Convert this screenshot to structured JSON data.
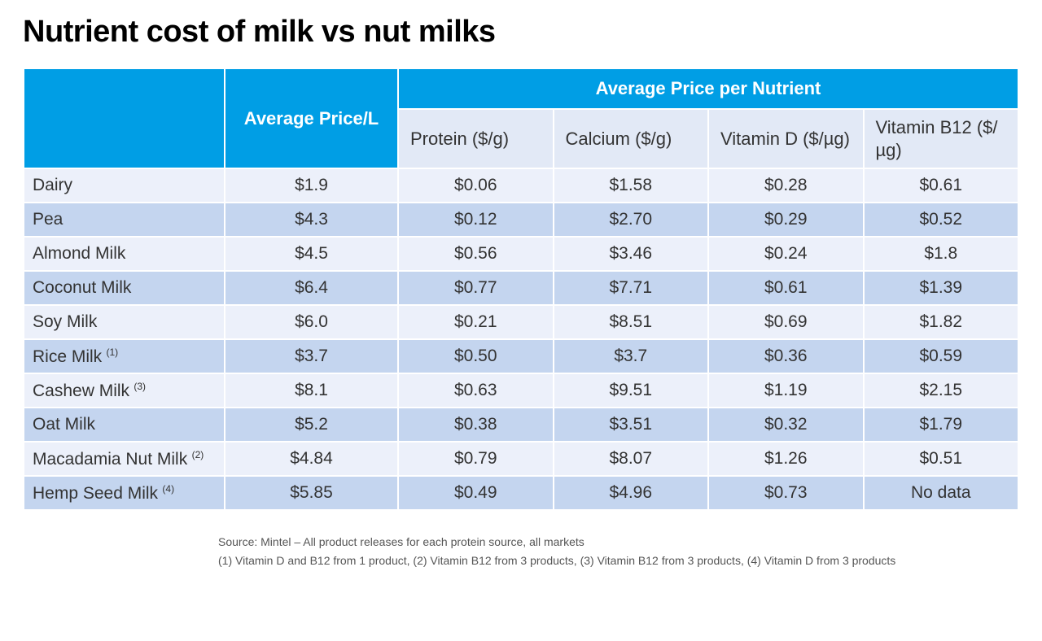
{
  "title": "Nutrient cost of milk vs nut milks",
  "table": {
    "header": {
      "avg_price_label": "Average Price/L",
      "group_label": "Average Price per Nutrient",
      "subcols": [
        {
          "label": "Protein ($/g)"
        },
        {
          "label": "Calcium ($/g)"
        },
        {
          "label": "Vitamin D ($/µg)"
        },
        {
          "label": "Vitamin B12 ($/µg)"
        }
      ]
    },
    "rows": [
      {
        "label": "Dairy",
        "sup": "",
        "price": "$1.9",
        "protein": "$0.06",
        "calcium": "$1.58",
        "vitd": "$0.28",
        "b12": "$0.61"
      },
      {
        "label": "Pea",
        "sup": "",
        "price": "$4.3",
        "protein": "$0.12",
        "calcium": "$2.70",
        "vitd": "$0.29",
        "b12": "$0.52"
      },
      {
        "label": "Almond Milk",
        "sup": "",
        "price": "$4.5",
        "protein": "$0.56",
        "calcium": "$3.46",
        "vitd": "$0.24",
        "b12": "$1.8"
      },
      {
        "label": "Coconut Milk",
        "sup": "",
        "price": "$6.4",
        "protein": "$0.77",
        "calcium": "$7.71",
        "vitd": "$0.61",
        "b12": "$1.39"
      },
      {
        "label": "Soy Milk",
        "sup": "",
        "price": "$6.0",
        "protein": "$0.21",
        "calcium": "$8.51",
        "vitd": "$0.69",
        "b12": "$1.82"
      },
      {
        "label": "Rice Milk",
        "sup": "(1)",
        "price": "$3.7",
        "protein": "$0.50",
        "calcium": "$3.7",
        "vitd": "$0.36",
        "b12": "$0.59"
      },
      {
        "label": "Cashew Milk",
        "sup": "(3)",
        "price": "$8.1",
        "protein": "$0.63",
        "calcium": "$9.51",
        "vitd": "$1.19",
        "b12": "$2.15"
      },
      {
        "label": "Oat Milk",
        "sup": "",
        "price": "$5.2",
        "protein": "$0.38",
        "calcium": "$3.51",
        "vitd": "$0.32",
        "b12": "$1.79"
      },
      {
        "label": "Macadamia Nut Milk",
        "sup": "(2)",
        "price": "$4.84",
        "protein": "$0.79",
        "calcium": "$8.07",
        "vitd": "$1.26",
        "b12": "$0.51"
      },
      {
        "label": "Hemp Seed Milk",
        "sup": "(4)",
        "price": "$5.85",
        "protein": "$0.49",
        "calcium": "$4.96",
        "vitd": "$0.73",
        "b12": "No data"
      }
    ]
  },
  "footnotes": {
    "source": "Source: Mintel – All product releases for each protein source, all markets",
    "notes": "(1) Vitamin D and B12 from 1 product,  (2) Vitamin B12 from 3 products,  (3) Vitamin B12 from 3 products,  (4) Vitamin D from 3 products"
  },
  "style": {
    "header_bg": "#009ee5",
    "header_text": "#ffffff",
    "subhead_bg": "#e2e9f6",
    "row_odd_bg": "#ecf0fa",
    "row_even_bg": "#c4d5ef",
    "border_color": "#ffffff",
    "title_fontsize": 38,
    "cell_fontsize": 21,
    "subhead_fontsize": 24,
    "group_fontsize": 28,
    "footnote_fontsize": 14
  }
}
